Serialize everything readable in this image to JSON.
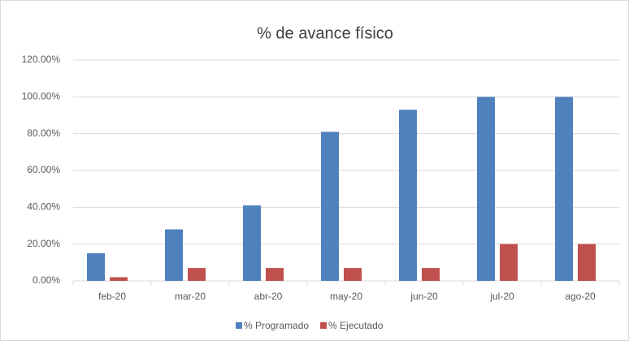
{
  "chart_data": {
    "type": "bar",
    "title": "% de avance físico",
    "categories": [
      "feb-20",
      "mar-20",
      "abr-20",
      "may-20",
      "jun-20",
      "jul-20",
      "ago-20"
    ],
    "series": [
      {
        "name": "% Programado",
        "color": "#4f81bd",
        "values": [
          15,
          28,
          41,
          81,
          93,
          100,
          100
        ]
      },
      {
        "name": "% Ejecutado",
        "color": "#c0504d",
        "values": [
          2,
          7,
          7,
          7,
          7,
          20,
          20
        ]
      }
    ],
    "ylim": [
      0,
      120
    ],
    "yticks": [
      {
        "value": 0,
        "label": "0.00%"
      },
      {
        "value": 20,
        "label": "20.00%"
      },
      {
        "value": 40,
        "label": "40.00%"
      },
      {
        "value": 60,
        "label": "60.00%"
      },
      {
        "value": 80,
        "label": "80.00%"
      },
      {
        "value": 100,
        "label": "100.00%"
      },
      {
        "value": 120,
        "label": "120.00%"
      }
    ],
    "grid": true,
    "legend": "bottom"
  }
}
